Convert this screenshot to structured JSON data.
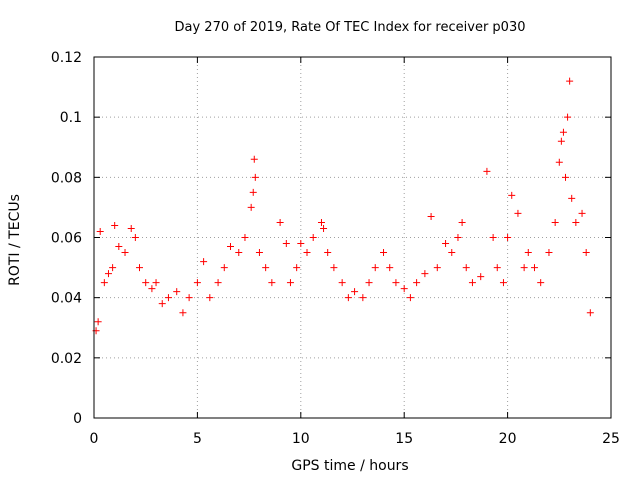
{
  "chart_data": {
    "type": "scatter",
    "title": "Day 270 of 2019, Rate Of TEC Index for receiver p030",
    "xlabel": "GPS time / hours",
    "ylabel": "ROTI / TECUs",
    "xlim": [
      0,
      25
    ],
    "ylim": [
      0,
      0.12
    ],
    "xticks": [
      0,
      5,
      10,
      15,
      20,
      25
    ],
    "xtick_labels": [
      "0",
      "5",
      "10",
      "15",
      "20",
      "25"
    ],
    "yticks": [
      0,
      0.02,
      0.04,
      0.06,
      0.08,
      0.1,
      0.12
    ],
    "ytick_labels": [
      "0",
      "0.02",
      "0.04",
      "0.06",
      "0.08",
      "0.1",
      "0.12"
    ],
    "grid": true,
    "marker": "+",
    "series": [
      {
        "name": "ROTI",
        "color": "#ff0000",
        "x": [
          0.1,
          0.2,
          0.3,
          0.5,
          0.7,
          0.9,
          1.0,
          1.2,
          1.5,
          1.8,
          2.0,
          2.2,
          2.5,
          2.8,
          3.0,
          3.3,
          3.6,
          4.0,
          4.3,
          4.6,
          5.0,
          5.3,
          5.6,
          6.0,
          6.3,
          6.6,
          7.0,
          7.3,
          7.6,
          7.7,
          7.75,
          7.8,
          8.0,
          8.3,
          8.6,
          9.0,
          9.3,
          9.5,
          9.8,
          10.0,
          10.3,
          10.6,
          11.0,
          11.1,
          11.3,
          11.6,
          12.0,
          12.3,
          12.6,
          13.0,
          13.3,
          13.6,
          14.0,
          14.3,
          14.6,
          15.0,
          15.3,
          15.6,
          16.0,
          16.3,
          16.6,
          17.0,
          17.3,
          17.6,
          17.8,
          18.0,
          18.3,
          18.7,
          19.0,
          19.3,
          19.5,
          19.8,
          20.0,
          20.2,
          20.5,
          20.8,
          21.0,
          21.3,
          21.6,
          22.0,
          22.3,
          22.5,
          22.6,
          22.7,
          22.8,
          22.9,
          23.0,
          23.1,
          23.3,
          23.6,
          23.8,
          24.0
        ],
        "y": [
          0.029,
          0.032,
          0.062,
          0.045,
          0.048,
          0.05,
          0.064,
          0.057,
          0.055,
          0.063,
          0.06,
          0.05,
          0.045,
          0.043,
          0.045,
          0.038,
          0.04,
          0.042,
          0.035,
          0.04,
          0.045,
          0.052,
          0.04,
          0.045,
          0.05,
          0.057,
          0.055,
          0.06,
          0.07,
          0.075,
          0.086,
          0.08,
          0.055,
          0.05,
          0.045,
          0.065,
          0.058,
          0.045,
          0.05,
          0.058,
          0.055,
          0.06,
          0.065,
          0.063,
          0.055,
          0.05,
          0.045,
          0.04,
          0.042,
          0.04,
          0.045,
          0.05,
          0.055,
          0.05,
          0.045,
          0.043,
          0.04,
          0.045,
          0.048,
          0.067,
          0.05,
          0.058,
          0.055,
          0.06,
          0.065,
          0.05,
          0.045,
          0.047,
          0.082,
          0.06,
          0.05,
          0.045,
          0.06,
          0.074,
          0.068,
          0.05,
          0.055,
          0.05,
          0.045,
          0.055,
          0.065,
          0.085,
          0.092,
          0.095,
          0.08,
          0.1,
          0.112,
          0.073,
          0.065,
          0.068,
          0.055,
          0.035
        ]
      }
    ]
  }
}
